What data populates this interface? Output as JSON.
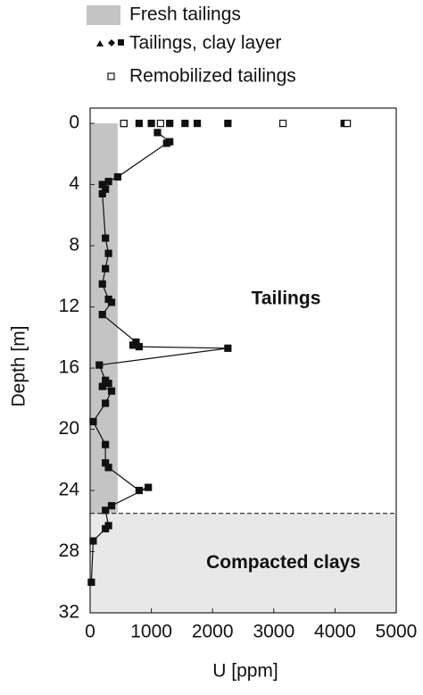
{
  "chart_data": {
    "type": "depth-profile",
    "x_label": "U [ppm]",
    "y_label": "Depth [m]",
    "xlim": [
      0,
      5000
    ],
    "xticks": [
      0,
      1000,
      2000,
      3000,
      4000,
      5000
    ],
    "ylim": [
      -1,
      32
    ],
    "yticks": [
      0,
      4,
      8,
      12,
      16,
      20,
      24,
      28,
      32
    ],
    "y_inverted": true,
    "zones": [
      {
        "name": "Fresh tailings",
        "color": "#c4c4c4",
        "xlim": [
          0,
          450
        ],
        "ylim": [
          0,
          25.5
        ]
      },
      {
        "label": "Compacted clays",
        "color": "#e8e8e8",
        "ylim": [
          25.5,
          32
        ]
      }
    ],
    "annotations": [
      {
        "text": "Tailings",
        "x": 3200,
        "y": 11.5
      }
    ],
    "series": [
      {
        "name": "Tailings, clay layer",
        "color": "#111111",
        "marker": "square-filled",
        "values": [
          550,
          null,
          800,
          null,
          1000,
          null,
          1300,
          null,
          1550,
          null,
          1750,
          null,
          2250,
          null,
          4150,
          null,
          1100,
          1300,
          1250,
          450,
          300,
          200,
          250,
          200,
          250,
          300,
          250,
          200,
          300,
          350,
          200,
          750,
          700,
          800,
          2250,
          150,
          250,
          300,
          200,
          350,
          250,
          50,
          250,
          250,
          300,
          800,
          950,
          350,
          250,
          300,
          250,
          50,
          20
        ],
        "depth": [
          0,
          null,
          0,
          null,
          0,
          null,
          0,
          null,
          0,
          null,
          0,
          null,
          0,
          null,
          0,
          null,
          0.6,
          1.2,
          1.3,
          3.5,
          3.8,
          4.0,
          4.3,
          4.6,
          7.5,
          8.5,
          9.5,
          10.5,
          11.5,
          11.7,
          12.5,
          14.3,
          14.5,
          14.6,
          14.7,
          15.8,
          16.8,
          17.0,
          17.2,
          17.5,
          18.3,
          19.5,
          21.0,
          22.2,
          22.5,
          24.0,
          23.8,
          25.0,
          25.3,
          26.3,
          26.5,
          27.3,
          30.0
        ]
      },
      {
        "name": "Remobilized tailings",
        "color": "#111111",
        "marker": "square-open",
        "values": [
          550,
          1150,
          3150,
          4200
        ],
        "depth": [
          0,
          0,
          0,
          0
        ]
      }
    ]
  }
}
